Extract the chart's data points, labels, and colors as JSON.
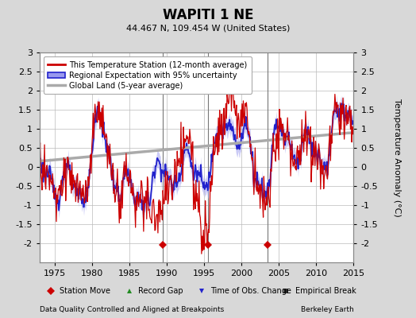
{
  "title": "WAPITI 1 NE",
  "subtitle": "44.467 N, 109.454 W (United States)",
  "ylabel": "Temperature Anomaly (°C)",
  "xlim": [
    1973,
    2015
  ],
  "ylim": [
    -2.5,
    3.0
  ],
  "yticks": [
    -2,
    -1.5,
    -1,
    -0.5,
    0,
    0.5,
    1,
    1.5,
    2,
    2.5,
    3
  ],
  "xticks": [
    1975,
    1980,
    1985,
    1990,
    1995,
    2000,
    2005,
    2010,
    2015
  ],
  "background_color": "#d8d8d8",
  "plot_bg_color": "#ffffff",
  "grid_color": "#bbbbbb",
  "station_move_years": [
    1989.5,
    1995.5,
    2003.5
  ],
  "vertical_line_years": [
    1989.5,
    1995.5,
    2003.5
  ],
  "footer_left": "Data Quality Controlled and Aligned at Breakpoints",
  "footer_right": "Berkeley Earth",
  "legend_entries": [
    "This Temperature Station (12-month average)",
    "Regional Expectation with 95% uncertainty",
    "Global Land (5-year average)"
  ]
}
